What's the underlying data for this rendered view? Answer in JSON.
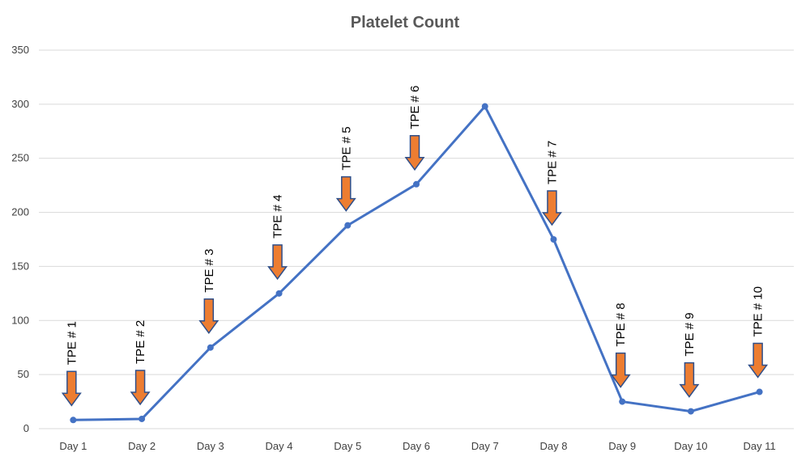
{
  "chart_data": {
    "type": "line",
    "title": "Platelet Count",
    "xlabel": "",
    "ylabel": "",
    "categories": [
      "Day 1",
      "Day 2",
      "Day 3",
      "Day 4",
      "Day 5",
      "Day 6",
      "Day 7",
      "Day 8",
      "Day 9",
      "Day 10",
      "Day 11"
    ],
    "series": [
      {
        "values": [
          8,
          9,
          75,
          125,
          188,
          226,
          298,
          175,
          25,
          16,
          34
        ]
      }
    ],
    "ylim": [
      0,
      350
    ],
    "yticks": [
      0,
      50,
      100,
      150,
      200,
      250,
      300,
      350
    ],
    "grid": true,
    "legend": "none",
    "annotations": [
      {
        "label": "TPE # 1",
        "category": "Day 1",
        "at_value": 8
      },
      {
        "label": "TPE # 2",
        "category": "Day 2",
        "at_value": 9
      },
      {
        "label": "TPE # 3",
        "category": "Day 3",
        "at_value": 75
      },
      {
        "label": "TPE # 4",
        "category": "Day 4",
        "at_value": 125
      },
      {
        "label": "TPE # 5",
        "category": "Day 5",
        "at_value": 188
      },
      {
        "label": "TPE # 6",
        "category": "Day 6",
        "at_value": 226
      },
      {
        "label": "TPE # 7",
        "category": "Day 8",
        "at_value": 175
      },
      {
        "label": "TPE # 8",
        "category": "Day 9",
        "at_value": 25
      },
      {
        "label": "TPE # 9",
        "category": "Day 10",
        "at_value": 16
      },
      {
        "label": "TPE # 10",
        "category": "Day 11",
        "at_value": 34
      }
    ],
    "colors": {
      "line": "#4472C4",
      "arrow_fill": "#ED7D31",
      "arrow_stroke": "#2F4F8A",
      "grid": "#D9D9D9"
    }
  }
}
